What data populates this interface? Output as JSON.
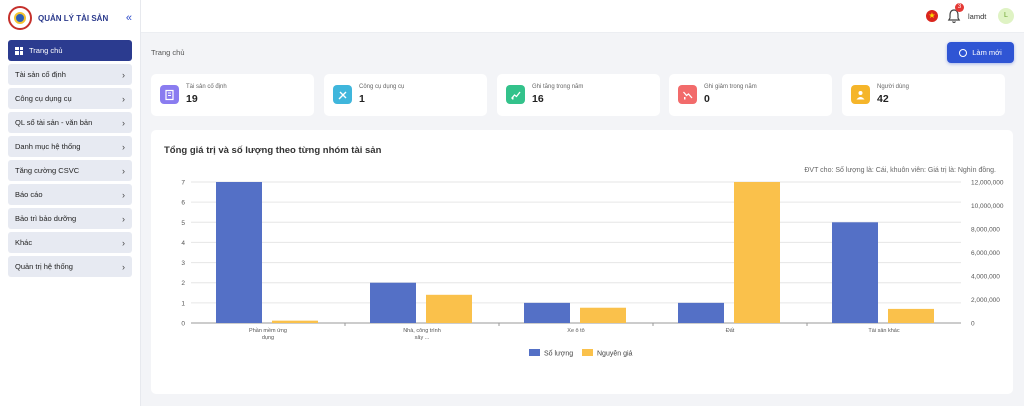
{
  "app": {
    "title": "QUẢN LÝ TÀI SẢN",
    "collapse_glyph": "«"
  },
  "sidebar": {
    "items": [
      {
        "label": "Trang chủ",
        "active": true
      },
      {
        "label": "Tài sản cố định"
      },
      {
        "label": "Công cụ dụng cụ"
      },
      {
        "label": "QL sổ tài sản - văn bản"
      },
      {
        "label": "Danh mục hệ thống"
      },
      {
        "label": "Tăng cường CSVC"
      },
      {
        "label": "Báo cáo"
      },
      {
        "label": "Bảo trì bảo dưỡng"
      },
      {
        "label": "Khác"
      },
      {
        "label": "Quản trị hệ thống"
      }
    ]
  },
  "header": {
    "flag_glyph": "★",
    "notification_count": "3",
    "username": "lamdt",
    "avatar_letter": "L"
  },
  "breadcrumb": "Trang chủ",
  "refresh_label": "Làm mới",
  "stats": [
    {
      "title": "Tài sản cố định",
      "value": "19",
      "color": "#8a7cf0",
      "icon": "building-icon"
    },
    {
      "title": "Công cụ dụng cụ",
      "value": "1",
      "color": "#3fb6dc",
      "icon": "tools-icon"
    },
    {
      "title": "Ghi tăng trong năm",
      "value": "16",
      "color": "#33c28b",
      "icon": "chart-up-icon"
    },
    {
      "title": "Ghi giảm trong năm",
      "value": "0",
      "color": "#f26b6b",
      "icon": "chart-down-icon"
    },
    {
      "title": "Người dùng",
      "value": "42",
      "color": "#f5b52a",
      "icon": "user-icon"
    }
  ],
  "chart_panel": {
    "title": "Tổng giá trị và số lượng theo từng nhóm tài sản",
    "note": "ĐVT cho: Số lượng là: Cái, khuôn viên: Giá trị là: Nghìn đồng."
  },
  "chart_data": {
    "type": "bar",
    "categories": [
      [
        "Phần mềm ứng",
        "dụng"
      ],
      [
        "Nhà, công trình",
        "xây ..."
      ],
      [
        "Xe ô tô"
      ],
      [
        "Đất"
      ],
      [
        "Tài sản khác"
      ]
    ],
    "series": [
      {
        "name": "Số lượng",
        "axis": "left",
        "color": "#5470c6",
        "values": [
          7,
          2,
          1,
          1,
          5
        ]
      },
      {
        "name": "Nguyên giá",
        "axis": "right",
        "color": "#fac14b",
        "values": [
          200000,
          2400000,
          1300000,
          12000000,
          1200000
        ]
      }
    ],
    "y_left": {
      "min": 0,
      "max": 7,
      "ticks": [
        "0",
        "1",
        "2",
        "3",
        "4",
        "5",
        "6",
        "7"
      ]
    },
    "y_right": {
      "min": 0,
      "max": 12000000,
      "ticks": [
        "0",
        "2,000,000",
        "4,000,000",
        "6,000,000",
        "8,000,000",
        "10,000,000",
        "12,000,000"
      ]
    },
    "grid": true,
    "legend": "bottom-center"
  }
}
